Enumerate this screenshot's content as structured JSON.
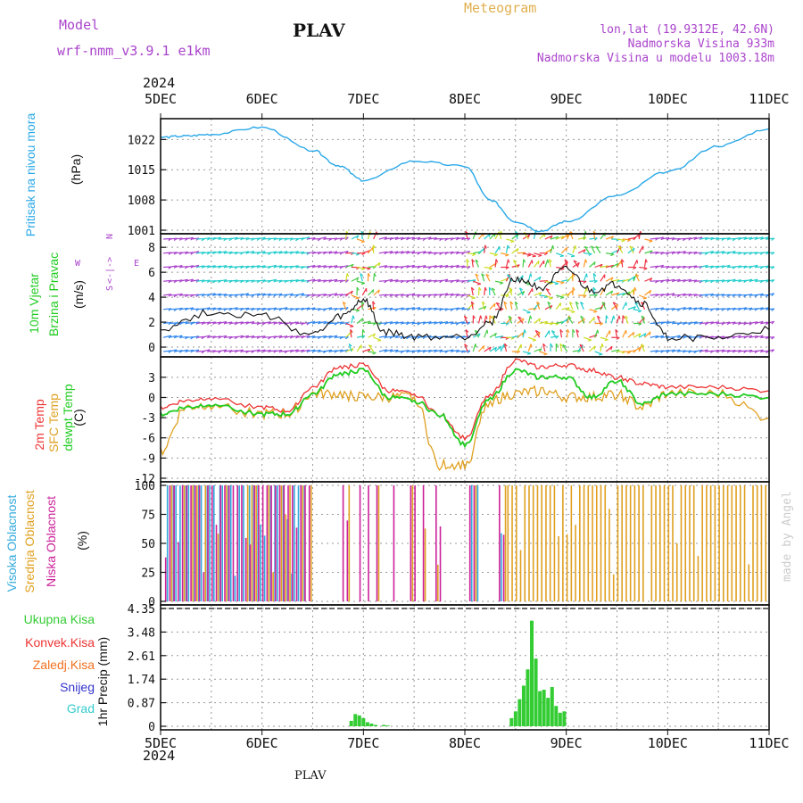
{
  "header": {
    "model_label": "Model",
    "model_name": "wrf-nmm_v3.9.1 e1km",
    "title": "PLAV",
    "meteogram_label": "Meteogram",
    "lonlat": "lon,lat (19.9312E, 42.6N)",
    "elevation": "Nadmorska Visina 933m",
    "model_elevation": "Nadmorska Visina u modelu 1003.18m",
    "year": "2024",
    "bottom_year": "2024",
    "bottom_title": "PLAV",
    "watermark": "made by Angel"
  },
  "colors": {
    "pressure": "#2aa8e8",
    "temp2m": "#ee3333",
    "sfc": "#e0a020",
    "dewpt": "#22cc22",
    "high_cloud": "#33aadd",
    "mid_cloud": "#e0a020",
    "low_cloud": "#cc2299",
    "precip": "#33cc33",
    "violet": "#aa44cc",
    "teal": "#33cccc",
    "blue": "#3333cc",
    "orange": "#f07020"
  },
  "labels": {
    "pressure_name": "Pritisak na nivou mora",
    "pressure_unit": "(hPa)",
    "wind_name": "10m Vjetar",
    "wind_sub": "Brzina i Pravac",
    "wind_unit": "(m/s)",
    "compass_n": "N",
    "compass_s": "S",
    "compass_w": "W",
    "compass_e": "E",
    "temp2m": "2m Temp",
    "sfc_temp": "SFC Temp",
    "dewpt": "dewpt Temp",
    "temp_unit": "(C)",
    "high_cloud": "Visoka Oblacnost",
    "mid_cloud": "Srednja Oblacnost",
    "low_cloud": "Niska Oblacnost",
    "cloud_unit": "(%)",
    "precip_axis": "1hr Precip (mm)",
    "legend_total": "Ukupna Kisa",
    "legend_conv": "Konvek.Kisa",
    "legend_strat": "Zaledj.Kisa",
    "legend_snow": "Snijeg",
    "legend_hail": "Grad"
  },
  "chart_data": [
    {
      "type": "line",
      "name": "pressure",
      "x_ticks": [
        "5DEC",
        "6DEC",
        "7DEC",
        "8DEC",
        "9DEC",
        "10DEC",
        "11DEC"
      ],
      "ylim": [
        1001,
        1026
      ],
      "yticks": [
        1001,
        1008,
        1015,
        1022
      ],
      "grid": true,
      "x": [
        0,
        0.25,
        0.5,
        1.0,
        1.5,
        1.75,
        2.0,
        2.5,
        3.0,
        3.25,
        3.5,
        3.75,
        4.0,
        4.5,
        5.0,
        5.5,
        6.0
      ],
      "values": [
        1022.5,
        1022.8,
        1023.2,
        1024.8,
        1019.5,
        1016,
        1012.5,
        1017,
        1015.8,
        1008,
        1003,
        1000.8,
        1003,
        1009,
        1014.5,
        1020.5,
        1024.5
      ]
    },
    {
      "type": "line",
      "name": "wind",
      "ylim": [
        -0.5,
        8.8
      ],
      "yticks": [
        0,
        2,
        4,
        6,
        8
      ],
      "grid": true,
      "x": [
        0,
        0.5,
        1.0,
        1.5,
        1.8,
        2.0,
        2.2,
        2.5,
        3.0,
        3.25,
        3.5,
        3.75,
        4.0,
        4.25,
        4.5,
        4.75,
        5.0,
        5.5,
        6.0
      ],
      "values": [
        1.5,
        2.8,
        2.5,
        1.0,
        2.5,
        3.8,
        1.2,
        0.8,
        0.8,
        2.0,
        5.5,
        4.8,
        6.2,
        4.5,
        5.0,
        3.5,
        0.8,
        0.7,
        1.4
      ]
    },
    {
      "type": "line",
      "name": "temperature",
      "ylim": [
        -12,
        5.5
      ],
      "yticks": [
        -12,
        -9,
        -6,
        -3,
        0,
        3
      ],
      "grid": true,
      "x": [
        0,
        0.25,
        0.5,
        1.0,
        1.25,
        1.5,
        1.75,
        2.0,
        2.25,
        2.5,
        2.75,
        3.0,
        3.25,
        3.5,
        3.75,
        4.0,
        4.25,
        4.5,
        4.75,
        5.0,
        5.5,
        6.0
      ],
      "series": [
        {
          "name": "2m Temp",
          "values": [
            -1.5,
            -0.5,
            0,
            -1.5,
            -2,
            1.5,
            4.5,
            4.8,
            1,
            0.5,
            -2.5,
            -6,
            0.5,
            5.5,
            4.5,
            4.8,
            4,
            3,
            2,
            1.5,
            1.5,
            1
          ]
        },
        {
          "name": "SFC Temp",
          "values": [
            -8,
            -1.5,
            -1,
            -2.5,
            -2.5,
            0.5,
            0.5,
            0,
            0,
            0,
            -10,
            -10,
            -0.5,
            0.5,
            1,
            0,
            0,
            0.5,
            -1.5,
            0.5,
            0.5,
            -3
          ]
        },
        {
          "name": "dewpt Temp",
          "values": [
            -2.5,
            -1.5,
            -1,
            -2.5,
            -2.5,
            0.5,
            3.5,
            4,
            0,
            -0.5,
            -2.5,
            -7,
            0,
            4,
            3,
            3,
            0,
            2.5,
            -1,
            0.5,
            0.5,
            0
          ]
        }
      ]
    },
    {
      "type": "bar",
      "name": "cloud cover",
      "ylim": [
        0,
        100
      ],
      "yticks": [
        0,
        25,
        50,
        75,
        100
      ],
      "grid": true
    },
    {
      "type": "bar",
      "name": "1hr precipitation",
      "ylim": [
        0,
        4.35
      ],
      "yticks": [
        0,
        0.87,
        1.74,
        2.61,
        3.48,
        4.35
      ],
      "grid": true,
      "x": [
        1.88,
        1.92,
        1.96,
        2.0,
        2.04,
        2.08,
        2.12,
        2.2,
        2.24,
        3.46,
        3.5,
        3.54,
        3.58,
        3.62,
        3.66,
        3.7,
        3.74,
        3.78,
        3.82,
        3.86,
        3.9,
        3.94,
        3.98
      ],
      "values": [
        0.2,
        0.45,
        0.4,
        0.3,
        0.15,
        0.1,
        0.05,
        0.05,
        0.03,
        0.3,
        0.55,
        1.0,
        1.5,
        2.1,
        3.9,
        2.5,
        1.3,
        1.35,
        1.05,
        1.45,
        0.75,
        0.5,
        0.55
      ]
    }
  ]
}
